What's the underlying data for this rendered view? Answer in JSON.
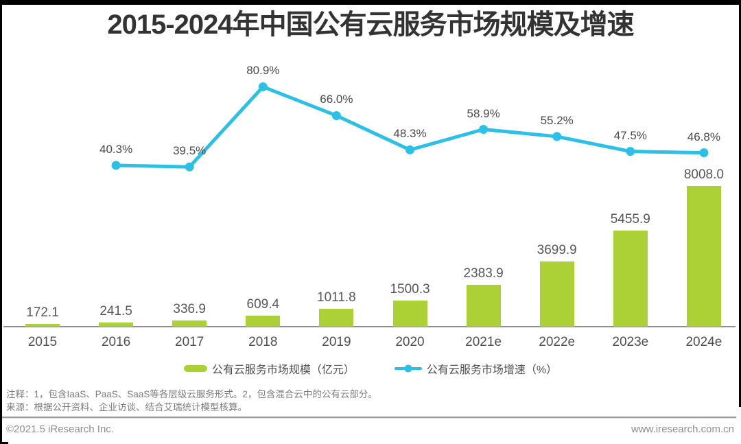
{
  "title": "2015-2024年中国公有云服务市场规模及增速",
  "chart_data": {
    "type": "bar+line",
    "title": "2015-2024年中国公有云服务市场规模及增速",
    "categories": [
      "2015",
      "2016",
      "2017",
      "2018",
      "2019",
      "2020",
      "2021e",
      "2022e",
      "2023e",
      "2024e"
    ],
    "series": [
      {
        "name": "公有云服务市场规模（亿元）",
        "type": "bar",
        "unit": "亿元",
        "color": "#abd136",
        "values": [
          172.1,
          241.5,
          336.9,
          609.4,
          1011.8,
          1500.3,
          2383.9,
          3699.9,
          5455.9,
          8008.0
        ]
      },
      {
        "name": "公有云服务市场增速（%）",
        "type": "line",
        "unit": "%",
        "color": "#2bc0e8",
        "values": [
          null,
          40.3,
          39.5,
          80.9,
          66.0,
          48.3,
          58.9,
          55.2,
          47.5,
          46.8
        ]
      }
    ],
    "legend_position": "bottom",
    "gridlines": false,
    "y_axis_ticks_shown": false,
    "data_labels": true
  },
  "legend": {
    "items": [
      {
        "label": "公有云服务市场规模（亿元）",
        "swatch": "bar",
        "color": "#abd136"
      },
      {
        "label": "公有云服务市场增速（%）",
        "swatch": "line",
        "color": "#2bc0e8"
      }
    ]
  },
  "notes": {
    "line1": "注释：1，包含IaaS、PaaS、SaaS等各层级云服务形式。2，包含混合云中的公有云部分。",
    "line2": "来源：根据公开资料、企业访谈、结合艾瑞统计模型核算。"
  },
  "footer": {
    "left": "©2021.5 iResearch Inc.",
    "right": "www.iresearch.com.cn"
  }
}
